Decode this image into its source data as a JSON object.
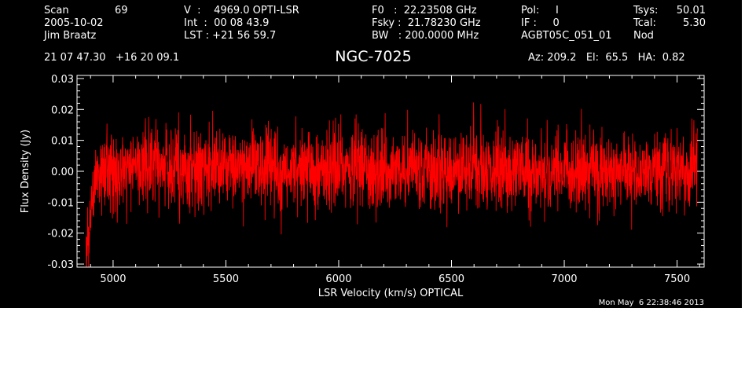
{
  "header": {
    "scan_label": "Scan",
    "scan_number": "69",
    "date": "2005-10-02",
    "observer": "Jim Braatz",
    "velocity": "V  :    4969.0 OPTI-LSR",
    "integration": "Int  :  00 08 43.9",
    "lst": "LST : +21 56 59.7",
    "f0": "F0   :  22.23508 GHz",
    "fsky": "Fsky :  21.78230 GHz",
    "bw": "BW   : 200.0000 MHz",
    "pol": "Pol:     I",
    "if": "IF :     0",
    "project": "AGBT05C_051_01",
    "tsys_label": "Tsys:",
    "tsys_value": "50.01",
    "tcal_label": "Tcal:",
    "tcal_value": "5.30",
    "mode": "Nod",
    "coords": "21 07 47.30   +16 20 09.1",
    "source": "NGC-7025",
    "azel": "Az: 209.2   El:  65.5   HA:  0.82"
  },
  "footer": {
    "timestamp": "Mon May  6 22:38:46 2013"
  },
  "colors": {
    "background": "#000000",
    "axes": "#ffffff",
    "series": "#ff0000"
  },
  "chart_data": {
    "type": "line",
    "title": "NGC-7025",
    "xlabel": "LSR Velocity (km/s) OPTICAL",
    "ylabel": "Flux Density (Jy)",
    "xlim": [
      4840,
      7620
    ],
    "ylim": [
      -0.031,
      0.031
    ],
    "xticks": [
      5000,
      5500,
      6000,
      6500,
      7000,
      7500
    ],
    "yticks": [
      -0.03,
      -0.02,
      -0.01,
      0.0,
      0.01,
      0.02,
      0.03
    ],
    "ytick_labels": [
      "-0.03",
      "-0.02",
      "-0.01",
      "0.00",
      "0.01",
      "0.02",
      "0.03"
    ],
    "grid": false,
    "series": [
      {
        "color": "#ff0000",
        "x_start": 4880,
        "x_end": 7590,
        "mean": 0.0,
        "rms": 0.0065,
        "x": [
          4880,
          4885,
          4890,
          4895,
          4900,
          4905,
          4910,
          4915,
          4920,
          4930,
          4950,
          5000,
          5100,
          5200,
          5300,
          5400,
          5500,
          5600,
          5700,
          5800,
          5900,
          6000,
          6100,
          6200,
          6300,
          6400,
          6500,
          6600,
          6700,
          6800,
          6900,
          7000,
          7100,
          7200,
          7300,
          7400,
          7500,
          7550,
          7580,
          7590
        ],
        "y": [
          -0.027,
          -0.028,
          -0.022,
          -0.02,
          -0.015,
          -0.01,
          -0.008,
          -0.005,
          -0.003,
          0.0,
          0.001,
          0.001,
          0.002,
          0.001,
          0.0,
          0.001,
          0.001,
          0.002,
          0.001,
          0.0,
          0.0,
          0.001,
          0.0,
          0.0,
          0.001,
          0.0,
          0.0,
          0.001,
          0.0,
          0.001,
          0.0,
          0.0,
          0.001,
          0.0,
          0.001,
          0.0,
          0.001,
          0.0,
          0.001,
          0.002
        ]
      }
    ]
  }
}
